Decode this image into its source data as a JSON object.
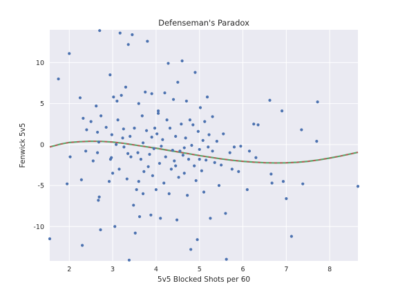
{
  "chart_data": {
    "type": "scatter",
    "title": "Defenseman's Paradox",
    "xlabel": "5v5 Blocked Shots per 60",
    "ylabel": "Fenwick 5v5",
    "xlim": [
      1.55,
      8.65
    ],
    "ylim": [
      -14.2,
      14.0
    ],
    "x_ticks": [
      "2",
      "3",
      "4",
      "5",
      "6",
      "7",
      "8"
    ],
    "y_ticks": [
      "-10",
      "-5",
      "0",
      "5",
      "10"
    ],
    "grid": true,
    "background": "#eaeaf2",
    "colors": {
      "points": "#4c72b0",
      "fit_solid": "#55a868",
      "fit_dash": "#c44e52"
    },
    "series": [
      {
        "type": "scatter",
        "points": [
          [
            1.55,
            -11.5
          ],
          [
            1.75,
            8.0
          ],
          [
            1.95,
            -4.8
          ],
          [
            2.0,
            11.1
          ],
          [
            2.02,
            -1.5
          ],
          [
            2.25,
            5.7
          ],
          [
            2.28,
            -4.3
          ],
          [
            2.3,
            -12.3
          ],
          [
            2.32,
            3.2
          ],
          [
            2.38,
            -0.8
          ],
          [
            2.4,
            1.8
          ],
          [
            2.5,
            2.8
          ],
          [
            2.55,
            -2.0
          ],
          [
            2.62,
            4.7
          ],
          [
            2.65,
            -1.0
          ],
          [
            2.67,
            -6.8
          ],
          [
            2.69,
            -6.4
          ],
          [
            2.7,
            13.9
          ],
          [
            2.72,
            -10.4
          ],
          [
            2.73,
            3.5
          ],
          [
            2.68,
            0.3
          ],
          [
            2.65,
            1.5
          ],
          [
            2.85,
            2.1
          ],
          [
            2.92,
            -4.5
          ],
          [
            2.94,
            8.5
          ],
          [
            2.95,
            -1.8
          ],
          [
            2.97,
            -1.6
          ],
          [
            2.98,
            1.2
          ],
          [
            3.0,
            -3.5
          ],
          [
            3.02,
            5.8
          ],
          [
            3.05,
            -10.0
          ],
          [
            3.08,
            0.0
          ],
          [
            3.1,
            5.3
          ],
          [
            3.12,
            3.0
          ],
          [
            3.15,
            -3.0
          ],
          [
            3.17,
            13.6
          ],
          [
            3.2,
            6.0
          ],
          [
            3.23,
            0.8
          ],
          [
            3.26,
            -0.3
          ],
          [
            3.3,
            7.0
          ],
          [
            3.33,
            -4.2
          ],
          [
            3.36,
            12.2
          ],
          [
            3.38,
            -14.1
          ],
          [
            3.4,
            1.0
          ],
          [
            3.42,
            -1.5
          ],
          [
            3.45,
            13.4
          ],
          [
            3.48,
            -7.4
          ],
          [
            3.5,
            2.0
          ],
          [
            3.52,
            -10.8
          ],
          [
            3.55,
            -5.5
          ],
          [
            3.58,
            -1.0
          ],
          [
            3.6,
            5.0
          ],
          [
            3.62,
            -8.8
          ],
          [
            3.65,
            -1.8
          ],
          [
            3.68,
            3.5
          ],
          [
            3.7,
            0.2
          ],
          [
            3.72,
            -3.3
          ],
          [
            3.75,
            6.4
          ],
          [
            3.78,
            1.7
          ],
          [
            3.8,
            12.6
          ],
          [
            3.82,
            -2.7
          ],
          [
            3.85,
            -1.2
          ],
          [
            3.88,
            -8.6
          ],
          [
            3.9,
            6.2
          ],
          [
            3.92,
            -3.8
          ],
          [
            3.95,
            -0.5
          ],
          [
            3.97,
            2.0
          ],
          [
            4.0,
            -5.5
          ],
          [
            4.02,
            1.3
          ],
          [
            4.05,
            4.1
          ],
          [
            4.08,
            -2.3
          ],
          [
            4.1,
            -9.0
          ],
          [
            4.12,
            -0.2
          ],
          [
            4.15,
            0.6
          ],
          [
            4.18,
            -4.7
          ],
          [
            4.2,
            6.3
          ],
          [
            4.22,
            -1.5
          ],
          [
            4.25,
            3.0
          ],
          [
            4.28,
            9.9
          ],
          [
            4.3,
            -6.0
          ],
          [
            4.32,
            2.0
          ],
          [
            4.35,
            -3.0
          ],
          [
            4.38,
            -0.7
          ],
          [
            4.4,
            5.5
          ],
          [
            4.42,
            -2.0
          ],
          [
            4.45,
            1.0
          ],
          [
            4.48,
            -9.2
          ],
          [
            4.5,
            7.6
          ],
          [
            4.52,
            -4.0
          ],
          [
            4.55,
            -0.8
          ],
          [
            4.58,
            2.5
          ],
          [
            4.6,
            10.2
          ],
          [
            4.62,
            -1.3
          ],
          [
            4.65,
            -3.5
          ],
          [
            4.68,
            0.8
          ],
          [
            4.7,
            5.3
          ],
          [
            4.72,
            -6.2
          ],
          [
            4.75,
            -1.8
          ],
          [
            4.78,
            3.0
          ],
          [
            4.8,
            -12.8
          ],
          [
            4.82,
            -0.1
          ],
          [
            4.85,
            2.4
          ],
          [
            4.88,
            -2.6
          ],
          [
            4.9,
            8.8
          ],
          [
            4.92,
            -4.4
          ],
          [
            4.95,
            -11.6
          ],
          [
            4.97,
            1.6
          ],
          [
            5.0,
            -0.6
          ],
          [
            5.02,
            4.5
          ],
          [
            5.05,
            -3.2
          ],
          [
            5.08,
            0.5
          ],
          [
            5.1,
            -5.8
          ],
          [
            5.12,
            2.8
          ],
          [
            5.15,
            -1.9
          ],
          [
            5.18,
            5.8
          ],
          [
            5.2,
            -0.3
          ],
          [
            5.22,
            1.2
          ],
          [
            5.25,
            -9.0
          ],
          [
            5.3,
            3.4
          ],
          [
            5.35,
            -2.2
          ],
          [
            5.4,
            0.4
          ],
          [
            5.45,
            -5.0
          ],
          [
            5.5,
            -2.5
          ],
          [
            5.55,
            1.3
          ],
          [
            5.6,
            -8.4
          ],
          [
            5.62,
            -14.0
          ],
          [
            5.7,
            -1.0
          ],
          [
            5.75,
            -3.0
          ],
          [
            5.8,
            -0.3
          ],
          [
            5.9,
            -3.3
          ],
          [
            5.95,
            -0.2
          ],
          [
            6.1,
            -5.5
          ],
          [
            6.15,
            -0.8
          ],
          [
            6.25,
            2.5
          ],
          [
            6.3,
            -1.6
          ],
          [
            6.35,
            2.4
          ],
          [
            6.62,
            5.4
          ],
          [
            6.65,
            -3.6
          ],
          [
            6.67,
            -4.7
          ],
          [
            6.9,
            4.1
          ],
          [
            6.93,
            -4.5
          ],
          [
            7.0,
            -6.6
          ],
          [
            7.12,
            -11.2
          ],
          [
            7.35,
            1.8
          ],
          [
            7.38,
            -4.8
          ],
          [
            7.7,
            0.4
          ],
          [
            7.72,
            5.2
          ],
          [
            8.65,
            -5.1
          ],
          [
            5.3,
            -0.8
          ],
          [
            3.35,
            -1.1
          ],
          [
            4.45,
            -2.6
          ],
          [
            3.9,
            0.9
          ],
          [
            4.05,
            3.8
          ],
          [
            3.25,
            1.9
          ],
          [
            3.6,
            -4.5
          ],
          [
            4.65,
            -0.4
          ],
          [
            5.0,
            -1.8
          ],
          [
            3.7,
            -6.0
          ]
        ]
      },
      {
        "type": "line",
        "name": "fit",
        "x": [
          1.55,
          1.8,
          2.0,
          2.25,
          2.5,
          2.75,
          3.0,
          3.25,
          3.5,
          3.75,
          4.0,
          4.25,
          4.5,
          4.75,
          5.0,
          5.25,
          5.5,
          5.75,
          6.0,
          6.25,
          6.5,
          6.75,
          7.0,
          7.25,
          7.5,
          7.75,
          8.0,
          8.25,
          8.65
        ],
        "y": [
          -0.3,
          0.05,
          0.25,
          0.35,
          0.4,
          0.38,
          0.3,
          0.15,
          -0.05,
          -0.25,
          -0.45,
          -0.68,
          -0.9,
          -1.12,
          -1.35,
          -1.55,
          -1.75,
          -1.92,
          -2.05,
          -2.15,
          -2.22,
          -2.25,
          -2.23,
          -2.17,
          -2.05,
          -1.88,
          -1.65,
          -1.4,
          -0.95
        ]
      }
    ]
  }
}
